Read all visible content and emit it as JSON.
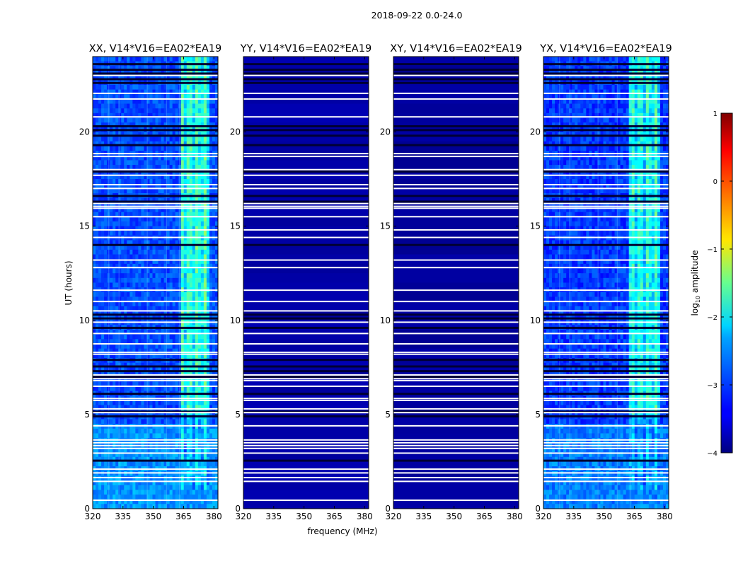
{
  "figure": {
    "suptitle": "2018-09-22 0.0-24.0"
  },
  "colorbar": {
    "label": "log10 amplitude",
    "label_base": "log",
    "label_sub": "10",
    "label_rest": " amplitude",
    "range": [
      -4,
      1
    ],
    "ticks": [
      1,
      0,
      -1,
      -2,
      -3,
      -4
    ],
    "tick_labels": [
      "1",
      "0",
      "−1",
      "−2",
      "−3",
      "−4"
    ],
    "colormap": "jet"
  },
  "chart_data": [
    {
      "type": "heatmap",
      "title": "XX, V14*V16=EA02*EA19",
      "xlabel": "",
      "ylabel": "UT (hours)",
      "xlim": [
        320,
        382
      ],
      "ylim": [
        0,
        24
      ],
      "xticks": [
        320,
        335,
        350,
        365,
        380
      ],
      "xtick_labels": [
        "320",
        "335",
        "350",
        "365",
        "380"
      ],
      "yticks": [
        0,
        5,
        10,
        15,
        20
      ],
      "ytick_labels": [
        "0",
        "5",
        "10",
        "15",
        "20"
      ],
      "base_log_amplitude": -3.0,
      "rfi_band_mhz": [
        363,
        378
      ],
      "rfi_log_amplitude": -2.0
    },
    {
      "type": "heatmap",
      "title": "YY, V14*V16=EA02*EA19",
      "xlabel": "frequency (MHz)",
      "ylabel": "",
      "xlim": [
        320,
        382
      ],
      "ylim": [
        0,
        24
      ],
      "xticks": [
        320,
        335,
        350,
        365,
        380
      ],
      "xtick_labels": [
        "320",
        "335",
        "350",
        "365",
        "380"
      ],
      "yticks": [
        0,
        5,
        10,
        15,
        20
      ],
      "ytick_labels": [
        "0",
        "5",
        "10",
        "15",
        "20"
      ],
      "base_log_amplitude": -3.8,
      "rfi_band_mhz": null,
      "rfi_log_amplitude": null
    },
    {
      "type": "heatmap",
      "title": "XY, V14*V16=EA02*EA19",
      "xlabel": "",
      "ylabel": "",
      "xlim": [
        320,
        382
      ],
      "ylim": [
        0,
        24
      ],
      "xticks": [
        320,
        335,
        350,
        365,
        380
      ],
      "xtick_labels": [
        "320",
        "335",
        "350",
        "365",
        "380"
      ],
      "yticks": [
        0,
        5,
        10,
        15,
        20
      ],
      "ytick_labels": [
        "0",
        "5",
        "10",
        "15",
        "20"
      ],
      "base_log_amplitude": -3.85,
      "rfi_band_mhz": null,
      "rfi_log_amplitude": null
    },
    {
      "type": "heatmap",
      "title": "YX, V14*V16=EA02*EA19",
      "xlabel": "",
      "ylabel": "",
      "xlim": [
        320,
        382
      ],
      "ylim": [
        0,
        24
      ],
      "xticks": [
        320,
        335,
        350,
        365,
        380
      ],
      "xtick_labels": [
        "320",
        "335",
        "350",
        "365",
        "380"
      ],
      "yticks": [
        0,
        5,
        10,
        15,
        20
      ],
      "ytick_labels": [
        "0",
        "5",
        "10",
        "15",
        "20"
      ],
      "base_log_amplitude": -3.1,
      "rfi_band_mhz": [
        362,
        378
      ],
      "rfi_log_amplitude": -2.1
    }
  ],
  "flagged_hours_white": [
    23.0,
    22.05,
    21.75,
    20.8,
    18.85,
    18.7,
    18.0,
    17.7,
    17.2,
    17.0,
    16.2,
    16.05,
    15.95,
    15.5,
    14.8,
    14.4,
    13.2,
    12.8,
    11.6,
    11.0,
    10.5,
    9.9,
    9.3,
    8.75,
    8.3,
    8.2,
    7.1,
    6.9,
    6.8,
    6.5,
    5.85,
    5.75,
    5.3,
    5.1,
    4.4,
    3.65,
    3.5,
    3.35,
    3.2,
    2.95,
    2.1,
    1.9,
    1.65,
    1.45,
    0.45
  ],
  "flagged_hours_dark": [
    23.6,
    23.3,
    23.1,
    22.8,
    22.6,
    20.3,
    20.1,
    19.8,
    19.3,
    17.9,
    16.6,
    16.3,
    14.0,
    10.3,
    10.1,
    9.6,
    7.9,
    7.55,
    7.3,
    7.0,
    6.1,
    5.15,
    4.9,
    2.55
  ]
}
